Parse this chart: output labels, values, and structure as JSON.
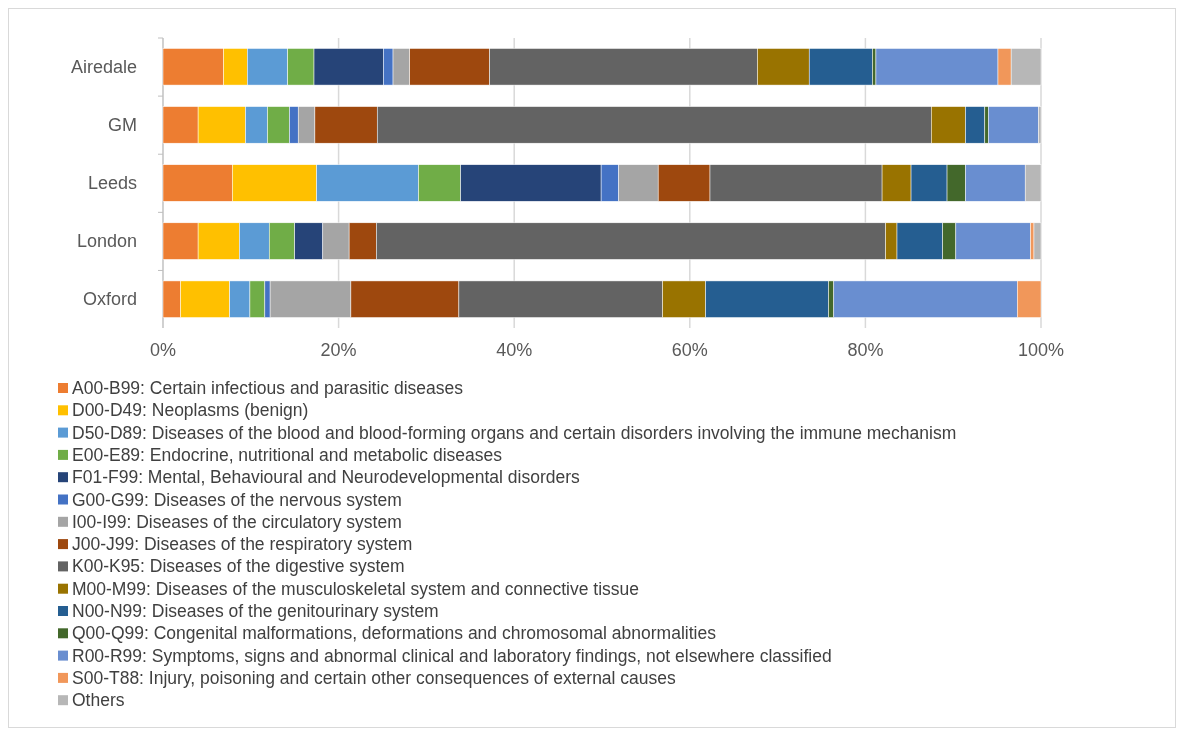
{
  "chart_data": {
    "type": "bar",
    "orientation": "horizontal",
    "stacked": true,
    "categories": [
      "Airedale",
      "GM",
      "Leeds",
      "London",
      "Oxford"
    ],
    "series": [
      {
        "name": "A00-B99: Certain infectious and parasitic diseases",
        "color": "#ed7d31",
        "values": [
          6.9,
          4.0,
          7.9,
          4.0,
          2.0
        ]
      },
      {
        "name": "D00-D49: Neoplasms (benign)",
        "color": "#ffc000",
        "values": [
          2.7,
          5.4,
          9.6,
          4.7,
          5.6
        ]
      },
      {
        "name": "D50-D89: Diseases of the blood and blood-forming organs and certain disorders involving the immune mechanism",
        "color": "#5b9bd5",
        "values": [
          4.6,
          2.5,
          11.6,
          3.4,
          2.3
        ]
      },
      {
        "name": "E00-E89: Endocrine, nutritional and metabolic diseases",
        "color": "#70ad47",
        "values": [
          3.0,
          2.5,
          4.8,
          2.9,
          1.7
        ]
      },
      {
        "name": "F01-F99: Mental, Behavioural and Neurodevelopmental disorders",
        "color": "#264478",
        "values": [
          7.9,
          0,
          16.0,
          3.2,
          0
        ]
      },
      {
        "name": "G00-G99: Diseases of the nervous system",
        "color": "#4472c4",
        "values": [
          1.1,
          1.0,
          2.0,
          null,
          0.6
        ]
      },
      {
        "name": "I00-I99: Diseases of the circulatory system",
        "color": "#a5a5a5",
        "values": [
          1.9,
          1.9,
          4.5,
          3.0,
          9.2
        ]
      },
      {
        "name": "J00-J99: Diseases of the respiratory system",
        "color": "#9e480e",
        "values": [
          9.1,
          7.1,
          5.9,
          3.1,
          12.3
        ]
      },
      {
        "name": "K00-K95: Diseases of the digestive system",
        "color": "#636363",
        "values": [
          30.5,
          63.1,
          19.6,
          58.0,
          23.2
        ]
      },
      {
        "name": "M00-M99: Diseases of the musculoskeletal system and connective tissue",
        "color": "#997300",
        "values": [
          5.9,
          3.9,
          3.3,
          1.3,
          4.9
        ]
      },
      {
        "name": "N00-N99: Diseases of the genitourinary system",
        "color": "#255e91",
        "values": [
          7.2,
          2.2,
          4.1,
          5.2,
          14.0
        ]
      },
      {
        "name": "Q00-Q99: Congenital malformations, deformations and chromosomal abnormalities",
        "color": "#43682b",
        "values": [
          0.4,
          0.4,
          2.1,
          1.5,
          0.6
        ]
      },
      {
        "name": "R00-R99: Symptoms, signs and abnormal clinical and laboratory findings, not elsewhere classified",
        "color": "#698ed0",
        "values": [
          13.9,
          5.7,
          6.8,
          8.5,
          20.9
        ]
      },
      {
        "name": "S00-T88: Injury, poisoning and certain other consequences of external causes",
        "color": "#f1975a",
        "values": [
          1.5,
          0,
          0,
          0.4,
          2.7
        ]
      },
      {
        "name": "Others",
        "color": "#b7b7b7",
        "values": [
          3.4,
          0.3,
          1.8,
          0.8,
          0
        ]
      }
    ],
    "xlim": [
      0,
      100
    ],
    "xticks": [
      {
        "value": 0,
        "label": "0%"
      },
      {
        "value": 20,
        "label": "20%"
      },
      {
        "value": 40,
        "label": "40%"
      },
      {
        "value": 60,
        "label": "60%"
      },
      {
        "value": 80,
        "label": "80%"
      },
      {
        "value": 100,
        "label": "100%"
      }
    ],
    "grid": "x",
    "legend": "bottom"
  }
}
